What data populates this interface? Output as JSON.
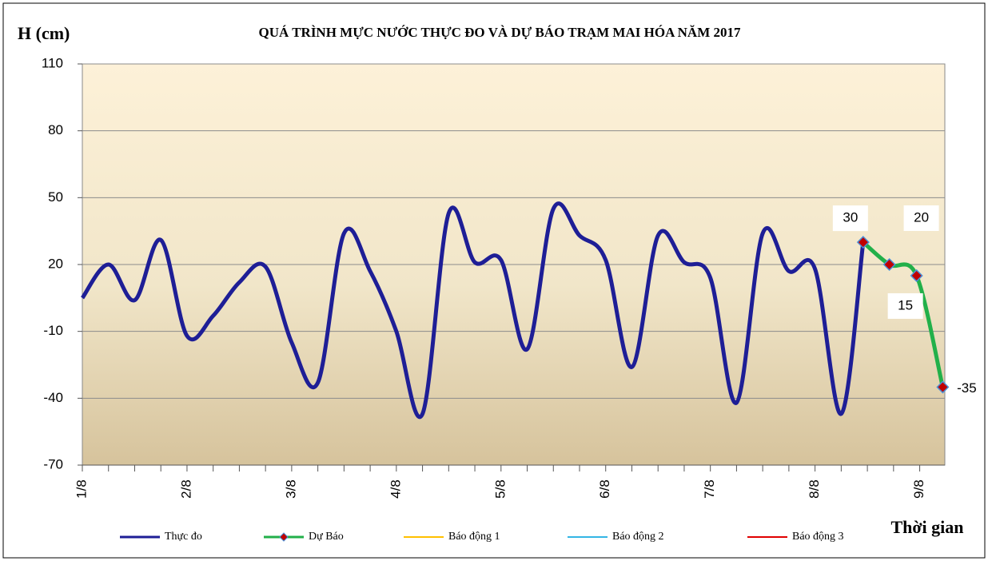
{
  "chart_data": {
    "type": "line",
    "title": "QUÁ TRÌNH MỰC NƯỚC THỰC ĐO VÀ DỰ BÁO TRẠM MAI HÓA NĂM  2017",
    "y_label": "H (cm)",
    "x_label": "Thời gian",
    "xlim": [
      0,
      8.24
    ],
    "xticks": [
      {
        "value": 0,
        "label": "1/8"
      },
      {
        "value": 1,
        "label": "2/8"
      },
      {
        "value": 2,
        "label": "3/8"
      },
      {
        "value": 3,
        "label": "4/8"
      },
      {
        "value": 4,
        "label": "5/8"
      },
      {
        "value": 5,
        "label": "6/8"
      },
      {
        "value": 6,
        "label": "7/8"
      },
      {
        "value": 7,
        "label": "8/8"
      },
      {
        "value": 8,
        "label": "9/8"
      }
    ],
    "ylim": [
      -70,
      110
    ],
    "yticks": [
      -70,
      -40,
      -10,
      20,
      50,
      80,
      110
    ],
    "grid": true,
    "series": [
      {
        "name": "Thực đo",
        "color": "#1e1e96",
        "x": [
          0,
          0.25,
          0.5,
          0.75,
          1,
          1.25,
          1.5,
          1.75,
          2,
          2.25,
          2.5,
          2.75,
          3,
          3.25,
          3.5,
          3.75,
          4,
          4.25,
          4.5,
          4.75,
          5,
          5.25,
          5.5,
          5.75,
          6,
          6.25,
          6.5,
          6.75,
          7,
          7.25,
          7.46
        ],
        "values": [
          5,
          20,
          4,
          31,
          -12,
          -3,
          12,
          19,
          -15,
          -33,
          34,
          17,
          -10,
          -47,
          43,
          21,
          22,
          -18,
          45,
          33,
          22,
          -26,
          33,
          21,
          14,
          -42,
          34,
          17,
          18,
          -47,
          30
        ]
      },
      {
        "name": "Dự Báo",
        "color": "#22b04a",
        "marker_color": "#c00000",
        "x": [
          7.46,
          7.71,
          7.97,
          8.22
        ],
        "values": [
          30,
          20,
          15,
          -35
        ]
      },
      {
        "name": "Báo động 1",
        "color": "#ffc000",
        "x": [],
        "values": []
      },
      {
        "name": "Báo động 2",
        "color": "#33b5e5",
        "x": [],
        "values": []
      },
      {
        "name": "Báo động 3",
        "color": "#e00000",
        "x": [],
        "values": []
      }
    ]
  }
}
